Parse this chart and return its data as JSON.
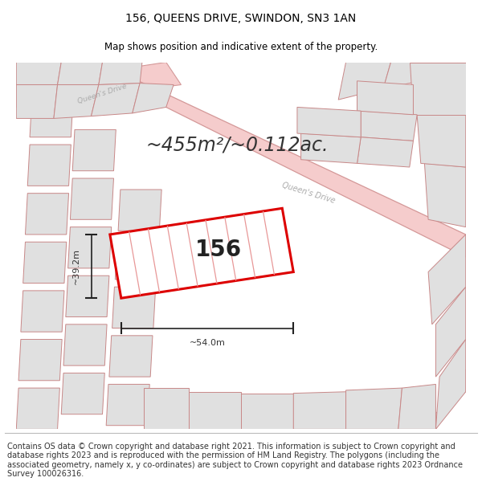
{
  "title": "156, QUEENS DRIVE, SWINDON, SN3 1AN",
  "subtitle": "Map shows position and indicative extent of the property.",
  "area_text": "~455m²/~0.112ac.",
  "property_number": "156",
  "dim_width": "~54.0m",
  "dim_height": "~39.2m",
  "footer_text": "Contains OS data © Crown copyright and database right 2021. This information is subject to Crown copyright and database rights 2023 and is reproduced with the permission of HM Land Registry. The polygons (including the associated geometry, namely x, y co-ordinates) are subject to Crown copyright and database rights 2023 Ordnance Survey 100026316.",
  "map_bg": "#f2f2f2",
  "plot_fill": "#ffffff",
  "plot_edge": "#dd0000",
  "other_plot_fill": "#e0e0e0",
  "other_plot_edge": "#c88888",
  "road_fill": "#f5cccc",
  "road_edge": "#d49898",
  "hatch_color": "#e89898",
  "title_fontsize": 10,
  "subtitle_fontsize": 8.5,
  "area_fontsize": 17,
  "number_fontsize": 20,
  "dim_fontsize": 8,
  "footer_fontsize": 7,
  "road_label_color": "#aaaaaa",
  "dim_color": "#222222"
}
